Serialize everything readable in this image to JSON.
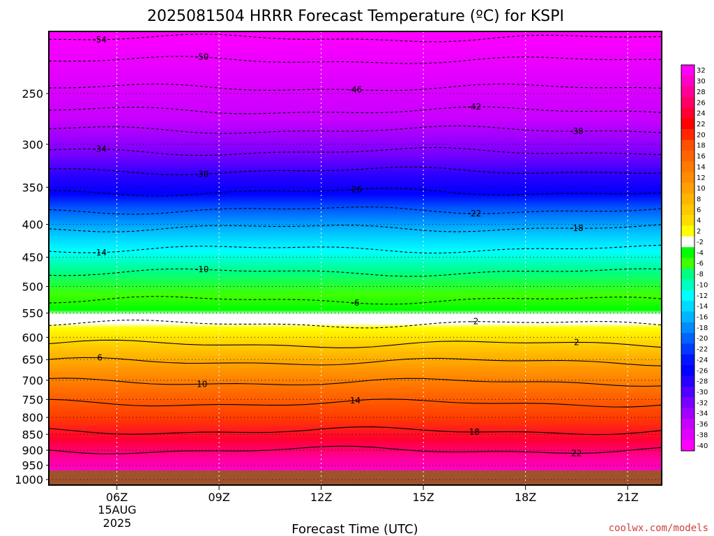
{
  "chart_data": {
    "type": "heatmap",
    "title": "2025081504 HRRR Forecast Temperature (ºC) for KSPI",
    "xlabel": "Forecast Time (UTC)",
    "credit": "coolwx.com/models",
    "x_ticks": [
      "06Z",
      "09Z",
      "12Z",
      "15Z",
      "18Z",
      "21Z"
    ],
    "x_hours": [
      6,
      9,
      12,
      15,
      18,
      21
    ],
    "x_range_hours": [
      4.0,
      22.0
    ],
    "date_label": [
      "15AUG",
      "2025"
    ],
    "y_ticks": [
      250,
      300,
      350,
      400,
      450,
      500,
      550,
      600,
      650,
      700,
      750,
      800,
      850,
      900,
      950,
      1000
    ],
    "y_range_hPa": [
      200,
      1020
    ],
    "y_scale": "log",
    "isotherms": [
      {
        "label": "-54",
        "p": 205,
        "dashed": true
      },
      {
        "label": "-50",
        "p": 222,
        "dashed": true
      },
      {
        "label": "-46",
        "p": 245,
        "dashed": true
      },
      {
        "label": "-42",
        "p": 266,
        "dashed": true
      },
      {
        "label": "-38",
        "p": 285,
        "dashed": true
      },
      {
        "label": "-34",
        "p": 308,
        "dashed": true
      },
      {
        "label": "-30",
        "p": 330,
        "dashed": true
      },
      {
        "label": "-26",
        "p": 356,
        "dashed": true
      },
      {
        "label": "-22",
        "p": 380,
        "dashed": true
      },
      {
        "label": "-18",
        "p": 405,
        "dashed": true
      },
      {
        "label": "-14",
        "p": 437,
        "dashed": true
      },
      {
        "label": "-10",
        "p": 475,
        "dashed": true
      },
      {
        "label": "-6",
        "p": 525,
        "dashed": true
      },
      {
        "label": "-2",
        "p": 572,
        "dashed": true
      },
      {
        "label": "2",
        "p": 615,
        "dashed": false
      },
      {
        "label": "6",
        "p": 655,
        "dashed": false
      },
      {
        "label": "10",
        "p": 705,
        "dashed": false
      },
      {
        "label": "14",
        "p": 760,
        "dashed": false
      },
      {
        "label": "18",
        "p": 840,
        "dashed": false
      },
      {
        "label": "22",
        "p": 900,
        "dashed": false
      }
    ],
    "colorbar": {
      "labels": [
        "32",
        "30",
        "28",
        "26",
        "24",
        "22",
        "20",
        "18",
        "16",
        "14",
        "12",
        "10",
        "8",
        "6",
        "4",
        "2",
        "-2",
        "-4",
        "-6",
        "-8",
        "-10",
        "-12",
        "-14",
        "-16",
        "-18",
        "-20",
        "-22",
        "-24",
        "-26",
        "-28",
        "-30",
        "-32",
        "-34",
        "-36",
        "-38",
        "-40"
      ],
      "colors": [
        "#ff00ff",
        "#ff00c8",
        "#ff0096",
        "#ff0064",
        "#ff0032",
        "#ff0000",
        "#ff2800",
        "#ff5000",
        "#ff6400",
        "#ff7800",
        "#ff8c00",
        "#ffa000",
        "#ffb400",
        "#ffc800",
        "#ffdc00",
        "#ffff00",
        "#ffffff",
        "#00ff00",
        "#40ff00",
        "#00ff80",
        "#00ffc0",
        "#00ffff",
        "#00dcff",
        "#00b4ff",
        "#008cff",
        "#0064ff",
        "#003cff",
        "#0014ff",
        "#0000ff",
        "#2800ff",
        "#5000ff",
        "#7800ff",
        "#a000ff",
        "#c800ff",
        "#e100ff",
        "#ff00ff"
      ]
    }
  }
}
